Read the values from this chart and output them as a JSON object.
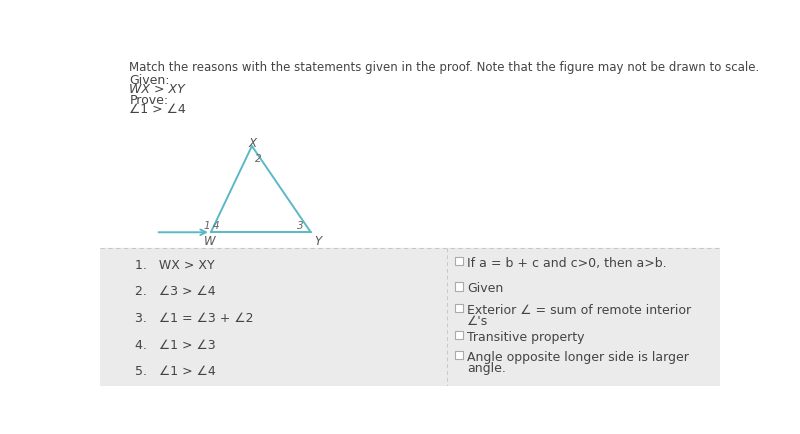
{
  "title_text": "Match the reasons with the statements given in the proof. Note that the figure may not be drawn to scale.",
  "given_label": "Given:",
  "given_value": "WX > XY",
  "prove_label": "Prove:",
  "prove_value": "∠1 > ∠4",
  "bg_color": "#ebebeb",
  "white_bg": "#ffffff",
  "border_color": "#c8c8c8",
  "triangle_color": "#5bb8c8",
  "statements": [
    "1.   WX > XY",
    "2.   ∠3 > ∠4",
    "3.   ∠1 = ∠3 + ∠2",
    "4.   ∠1 > ∠3",
    "5.   ∠1 > ∠4"
  ],
  "reasons": [
    "If a = b + c and c>0, then a>b.",
    "Given",
    "Exterior ∠ = sum of remote interior",
    "∠'s",
    "Transitive property",
    "Angle opposite longer side is larger",
    "angle."
  ],
  "font_size_title": 8.5,
  "font_size_body": 9,
  "font_size_diagram": 8.5
}
